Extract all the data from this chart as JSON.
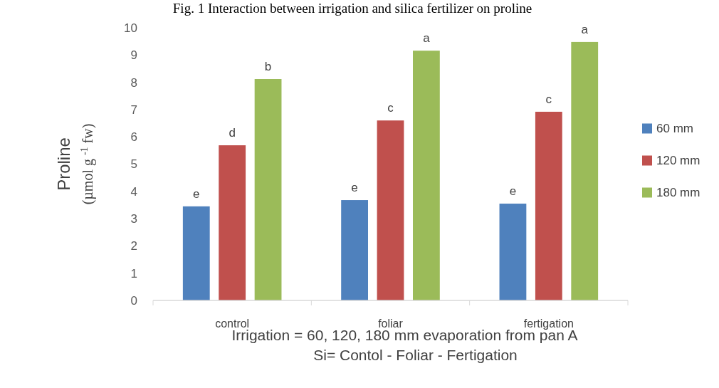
{
  "chart_data": {
    "type": "bar",
    "title": "Fig. 1 Interaction between irrigation and silica fertilizer on proline",
    "xlabel": "Irrigation = 60, 120, 180 mm evaporation from pan A\nSi= Contol - Foliar - Fertigation",
    "ylabel": "Proline\n(µmol g $^{-1}$ fw)",
    "categories": [
      "control",
      "foliar",
      "fertigation"
    ],
    "series": [
      {
        "name": "60 mm",
        "color": "#4f81bd",
        "values": [
          3.45,
          3.68,
          3.55
        ],
        "value_labels": [
          "e",
          "e",
          "e"
        ]
      },
      {
        "name": "120 mm",
        "color": "#c0504d",
        "values": [
          5.69,
          6.6,
          6.92
        ],
        "value_labels": [
          "d",
          "c",
          "c"
        ]
      },
      {
        "name": "180 mm",
        "color": "#9bbb59",
        "values": [
          8.12,
          9.16,
          9.48
        ],
        "value_labels": [
          "b",
          "a",
          "a"
        ]
      }
    ],
    "ylim": [
      0,
      10
    ],
    "yticks": [
      0,
      1,
      2,
      3,
      4,
      5,
      6,
      7,
      8,
      9,
      10
    ],
    "legend": "right",
    "grid": false
  }
}
